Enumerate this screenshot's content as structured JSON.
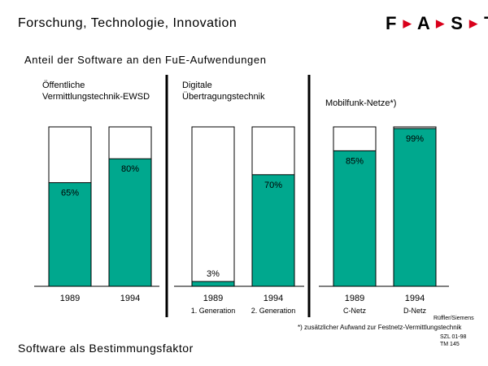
{
  "header": {
    "title": "Forschung, Technologie, Innovation",
    "logo_letters": [
      "F",
      "A",
      "S",
      "T"
    ],
    "logo_separator": "▶"
  },
  "subtitle": "Anteil der Software an den FuE-Aufwendungen",
  "footer": {
    "title": "Software als Bestimmungsfaktor",
    "footnote": "*) zusätzlicher Aufwand zur Festnetz-Vermittlungstechnik",
    "credit": "Rüffler/Siemens",
    "ref_line1": "SZL 01-98",
    "ref_line2": "TM 145"
  },
  "colors": {
    "software": "#00a88e",
    "remainder": "#ffffff",
    "logo_accent": "#d9001b"
  },
  "chart_data": [
    {
      "type": "bar",
      "title": "Öffentliche Vermittlungstechnik-EWSD",
      "title_lines": [
        "Öffentliche",
        "Vermittlungstechnik-EWSD"
      ],
      "stacked": true,
      "ylim": [
        0,
        100
      ],
      "categories": [
        "1989",
        "1994"
      ],
      "sublabels": [
        "",
        ""
      ],
      "values": [
        65,
        80
      ],
      "value_labels": [
        "65%",
        "80%"
      ]
    },
    {
      "type": "bar",
      "title": "Digitale Übertragungstechnik",
      "title_lines": [
        "Digitale",
        "Übertragungstechnik"
      ],
      "stacked": true,
      "ylim": [
        0,
        100
      ],
      "categories": [
        "1989",
        "1994"
      ],
      "sublabels": [
        "1. Generation",
        "2. Generation"
      ],
      "values": [
        3,
        70
      ],
      "value_labels": [
        "3%",
        "70%"
      ]
    },
    {
      "type": "bar",
      "title": "Mobilfunk-Netze*)",
      "title_lines": [
        "Mobilfunk-Netze*)"
      ],
      "stacked": true,
      "ylim": [
        0,
        100
      ],
      "categories": [
        "1989",
        "1994"
      ],
      "sublabels": [
        "C-Netz",
        "D-Netz"
      ],
      "values": [
        85,
        99
      ],
      "value_labels": [
        "85%",
        "99%"
      ]
    }
  ]
}
